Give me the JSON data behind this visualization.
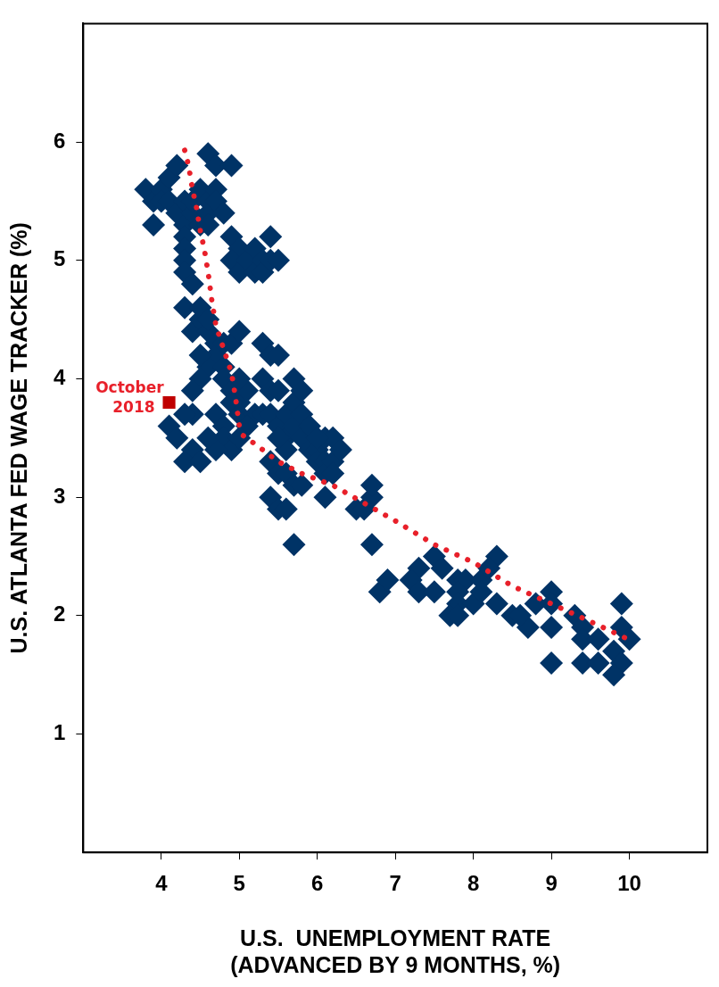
{
  "chart_data": {
    "type": "scatter",
    "xlabel": "U.S.  UNEMPLOYMENT RATE\n(ADVANCED BY 9 MONTHS, %)",
    "ylabel": "U.S. ATLANTA FED WAGE TRACKER (%)",
    "xlim": [
      3,
      11
    ],
    "xticks": [
      4,
      5,
      6,
      7,
      8,
      9,
      10
    ],
    "ylim": [
      0,
      7
    ],
    "yticks": [
      1,
      2,
      3,
      4,
      5,
      6
    ],
    "grid": false,
    "legend": false,
    "annotations": [
      {
        "text": "October\n2018",
        "x": 4.1,
        "y": 3.8
      }
    ],
    "series": [
      {
        "color": "#003366",
        "marker": "diamond",
        "x": [
          3.8,
          3.9,
          3.9,
          4.0,
          4.0,
          4.1,
          4.1,
          4.2,
          4.2,
          4.3,
          4.3,
          4.3,
          4.3,
          4.3,
          4.3,
          4.4,
          4.4,
          4.4,
          4.5,
          4.5,
          4.6,
          4.6,
          4.7,
          4.7,
          4.6,
          4.6,
          4.7,
          4.9,
          4.8,
          4.9,
          5.0,
          4.9,
          5.0,
          5.1,
          5.2,
          5.2,
          5.3,
          5.3,
          5.4,
          5.4,
          5.5,
          4.3,
          4.4,
          4.5,
          4.5,
          4.6,
          4.6,
          4.7,
          4.7,
          4.6,
          4.5,
          4.4,
          4.5,
          4.8,
          4.8,
          4.9,
          5.0,
          4.8,
          4.9,
          5.0,
          5.1,
          5.0,
          4.9,
          4.7,
          4.8,
          4.8,
          4.9,
          4.7,
          4.6,
          4.4,
          4.3,
          4.1,
          4.2,
          4.4,
          4.3,
          4.5,
          5.0,
          5.2,
          5.3,
          5.1,
          5.0,
          5.3,
          5.4,
          5.3,
          5.4,
          5.5,
          5.5,
          5.4,
          5.5,
          5.6,
          5.6,
          5.7,
          5.7,
          5.7,
          5.8,
          5.8,
          5.8,
          5.9,
          5.9,
          5.6,
          5.5,
          5.4,
          5.5,
          5.6,
          5.7,
          5.8,
          6.0,
          6.0,
          6.1,
          6.1,
          6.1,
          6.1,
          6.2,
          6.2,
          6.2,
          6.3,
          6.0,
          5.4,
          5.5,
          5.6,
          5.7,
          6.5,
          6.6,
          6.7,
          6.7,
          6.7,
          6.8,
          6.9,
          7.3,
          7.2,
          7.3,
          7.5,
          7.5,
          7.6,
          7.8,
          7.9,
          7.8,
          7.8,
          7.7,
          7.8,
          8.0,
          8.1,
          8.3,
          8.2,
          8.3,
          8.1,
          8.5,
          8.7,
          8.6,
          8.8,
          9.0,
          9.0,
          9.0,
          9.0,
          9.3,
          9.4,
          9.4,
          9.6,
          9.4,
          9.6,
          9.9,
          9.9,
          10.0,
          9.8,
          9.9,
          9.8
        ],
        "values": [
          5.6,
          5.5,
          5.3,
          5.6,
          5.5,
          5.7,
          5.5,
          5.8,
          5.4,
          5.5,
          5.3,
          5.2,
          5.1,
          5.0,
          4.9,
          4.8,
          5.4,
          5.5,
          5.6,
          5.3,
          5.5,
          5.4,
          5.6,
          5.5,
          5.3,
          5.9,
          5.8,
          5.8,
          5.4,
          5.2,
          5.1,
          5.0,
          4.9,
          5.0,
          5.1,
          4.9,
          5.0,
          4.9,
          5.0,
          5.2,
          5.0,
          4.6,
          4.4,
          4.5,
          4.6,
          4.4,
          4.5,
          4.3,
          4.2,
          4.1,
          4.0,
          3.9,
          4.2,
          4.1,
          4.3,
          4.3,
          4.4,
          4.0,
          3.9,
          3.8,
          3.9,
          4.0,
          3.8,
          3.7,
          3.6,
          3.5,
          3.4,
          3.4,
          3.5,
          3.7,
          3.7,
          3.6,
          3.5,
          3.4,
          3.3,
          3.3,
          3.7,
          3.7,
          3.7,
          3.6,
          3.5,
          4.3,
          4.2,
          4.0,
          3.9,
          4.2,
          3.9,
          3.7,
          3.6,
          3.7,
          3.5,
          3.6,
          3.8,
          4.0,
          3.9,
          3.7,
          3.5,
          3.6,
          3.4,
          3.4,
          3.5,
          3.3,
          3.2,
          3.2,
          3.1,
          3.1,
          3.4,
          3.3,
          3.5,
          3.3,
          3.2,
          3.0,
          3.5,
          3.3,
          3.2,
          3.4,
          3.5,
          3.0,
          2.9,
          2.9,
          2.6,
          2.9,
          2.9,
          3.0,
          3.1,
          2.6,
          2.2,
          2.3,
          2.4,
          2.3,
          2.2,
          2.2,
          2.5,
          2.4,
          2.3,
          2.3,
          2.2,
          2.1,
          2.0,
          2.0,
          2.1,
          2.3,
          2.5,
          2.4,
          2.1,
          2.2,
          2.0,
          1.9,
          2.0,
          2.1,
          2.2,
          2.1,
          1.9,
          1.6,
          2.0,
          1.9,
          1.8,
          1.8,
          1.6,
          1.6,
          2.1,
          1.9,
          1.8,
          1.7,
          1.6,
          1.5
        ]
      },
      {
        "type": "line",
        "color": "#e8202a",
        "marker": "none",
        "line_style": "dotted",
        "x": [
          4.3,
          4.35,
          4.4,
          4.45,
          4.5,
          4.55,
          4.6,
          4.65,
          4.7,
          4.8,
          4.9,
          4.95,
          5.0,
          5.05,
          5.2,
          5.5,
          5.8,
          6.2,
          6.6,
          7.0,
          7.5,
          8.0,
          8.5,
          9.0,
          9.5,
          10.05
        ],
        "values": [
          5.93,
          5.8,
          5.6,
          5.45,
          5.25,
          5.1,
          4.9,
          4.65,
          4.45,
          4.25,
          4.05,
          3.85,
          3.6,
          3.52,
          3.45,
          3.3,
          3.2,
          3.1,
          2.95,
          2.8,
          2.6,
          2.45,
          2.25,
          2.1,
          1.95,
          1.78
        ]
      },
      {
        "type": "scatter",
        "color": "#c00000",
        "marker": "square",
        "x": [
          4.1
        ],
        "values": [
          3.8
        ]
      }
    ]
  }
}
